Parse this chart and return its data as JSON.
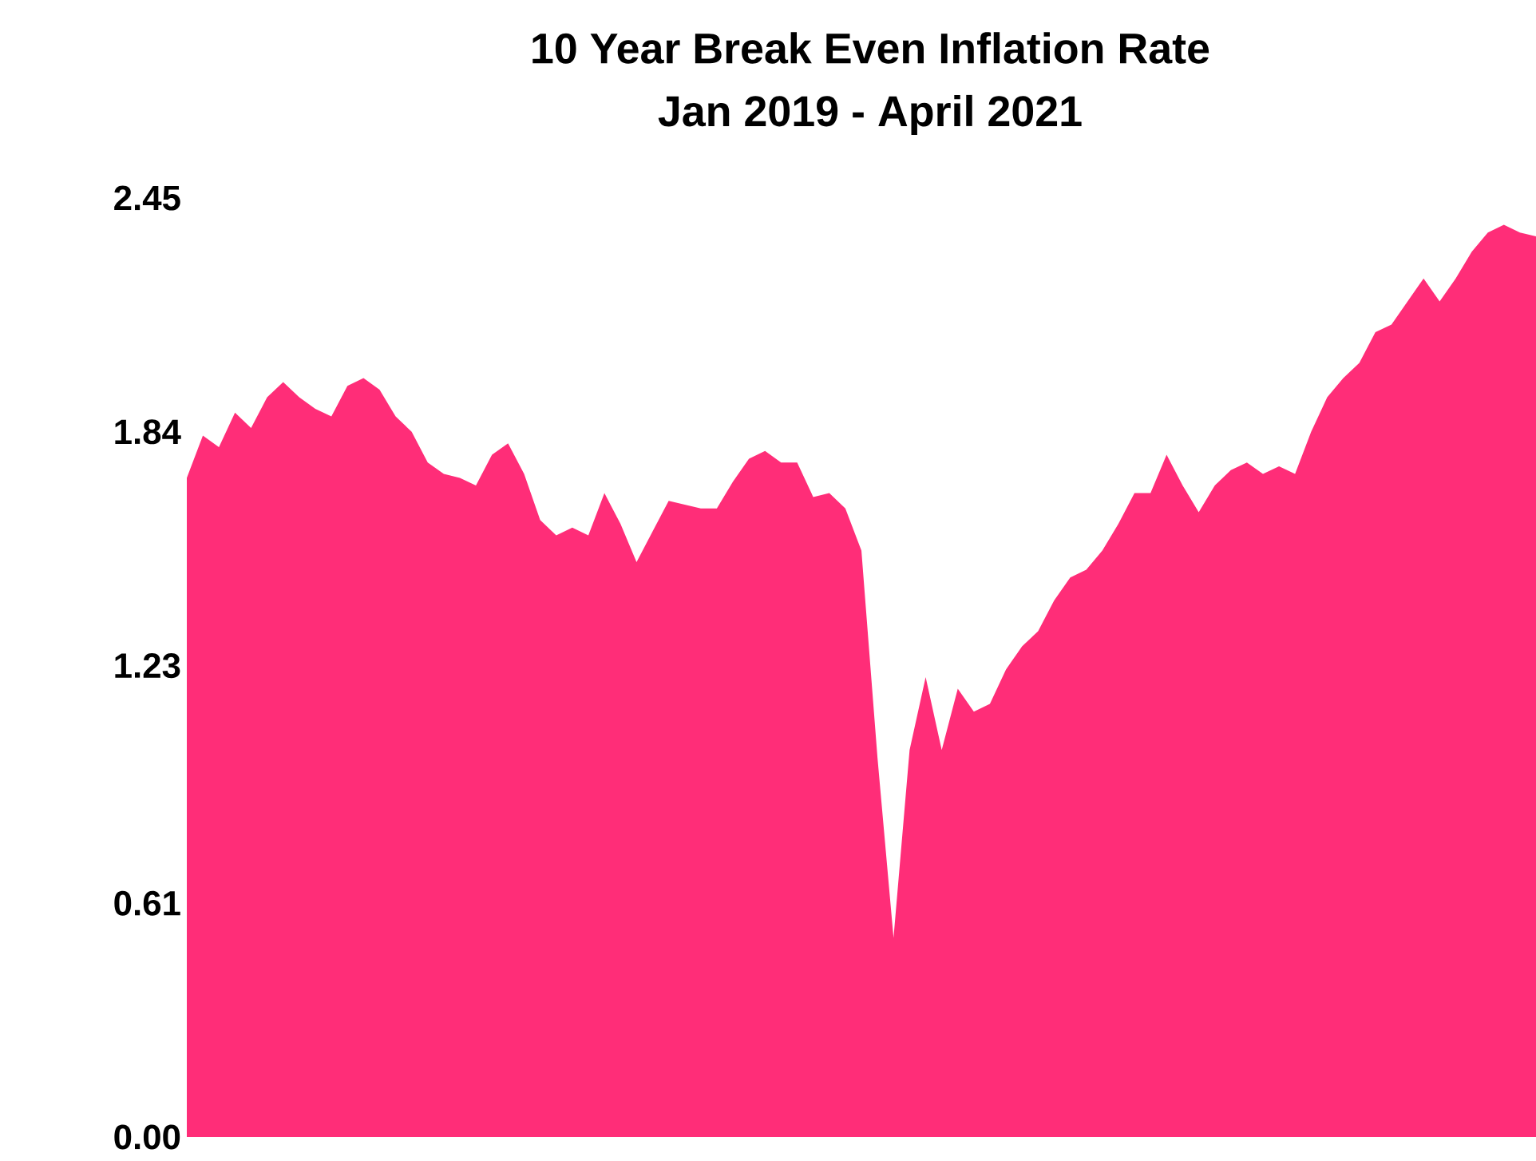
{
  "chart_data": {
    "type": "area",
    "title": "10 Year Break Even Inflation Rate",
    "subtitle": "Jan 2019 - April 2021",
    "categories": [
      null,
      null,
      null,
      null,
      null,
      null,
      null,
      null,
      null,
      null,
      null,
      null,
      null,
      null,
      null,
      null,
      null,
      null,
      null,
      null,
      null,
      null,
      null,
      null,
      null,
      null,
      null,
      null,
      null,
      null,
      null,
      null,
      null,
      null,
      null,
      null,
      null,
      null,
      null,
      null,
      null,
      null,
      null,
      null,
      null,
      null,
      null,
      null,
      null,
      null,
      null,
      null,
      null,
      null,
      null,
      null,
      null,
      null,
      null,
      null,
      null,
      null,
      null,
      null,
      null,
      null,
      null,
      null,
      null,
      null,
      null,
      null,
      null,
      null,
      null,
      null,
      null,
      null,
      null,
      null,
      null,
      null,
      null,
      null,
      null
    ],
    "values": [
      1.72,
      1.83,
      1.8,
      1.89,
      1.85,
      1.93,
      1.97,
      1.93,
      1.9,
      1.88,
      1.96,
      1.98,
      1.95,
      1.88,
      1.84,
      1.76,
      1.73,
      1.72,
      1.7,
      1.78,
      1.81,
      1.73,
      1.61,
      1.57,
      1.59,
      1.57,
      1.68,
      1.6,
      1.5,
      1.58,
      1.66,
      1.65,
      1.64,
      1.64,
      1.71,
      1.77,
      1.79,
      1.76,
      1.76,
      1.67,
      1.68,
      1.64,
      1.53,
      0.99,
      0.52,
      1.01,
      1.2,
      1.01,
      1.17,
      1.11,
      1.13,
      1.22,
      1.28,
      1.32,
      1.4,
      1.46,
      1.48,
      1.53,
      1.6,
      1.68,
      1.68,
      1.78,
      1.7,
      1.63,
      1.7,
      1.74,
      1.76,
      1.73,
      1.75,
      1.73,
      1.84,
      1.93,
      1.98,
      2.02,
      2.1,
      2.12,
      2.18,
      2.24,
      2.18,
      2.24,
      2.31,
      2.36,
      2.38,
      2.36,
      2.35
    ],
    "color": "#ff2d78",
    "ylim": [
      0,
      2.45
    ],
    "yticks": [
      {
        "value": 0,
        "label": "0.00"
      },
      0.61,
      1.23,
      1.84,
      2.45
    ],
    "tick_labels": "y"
  }
}
